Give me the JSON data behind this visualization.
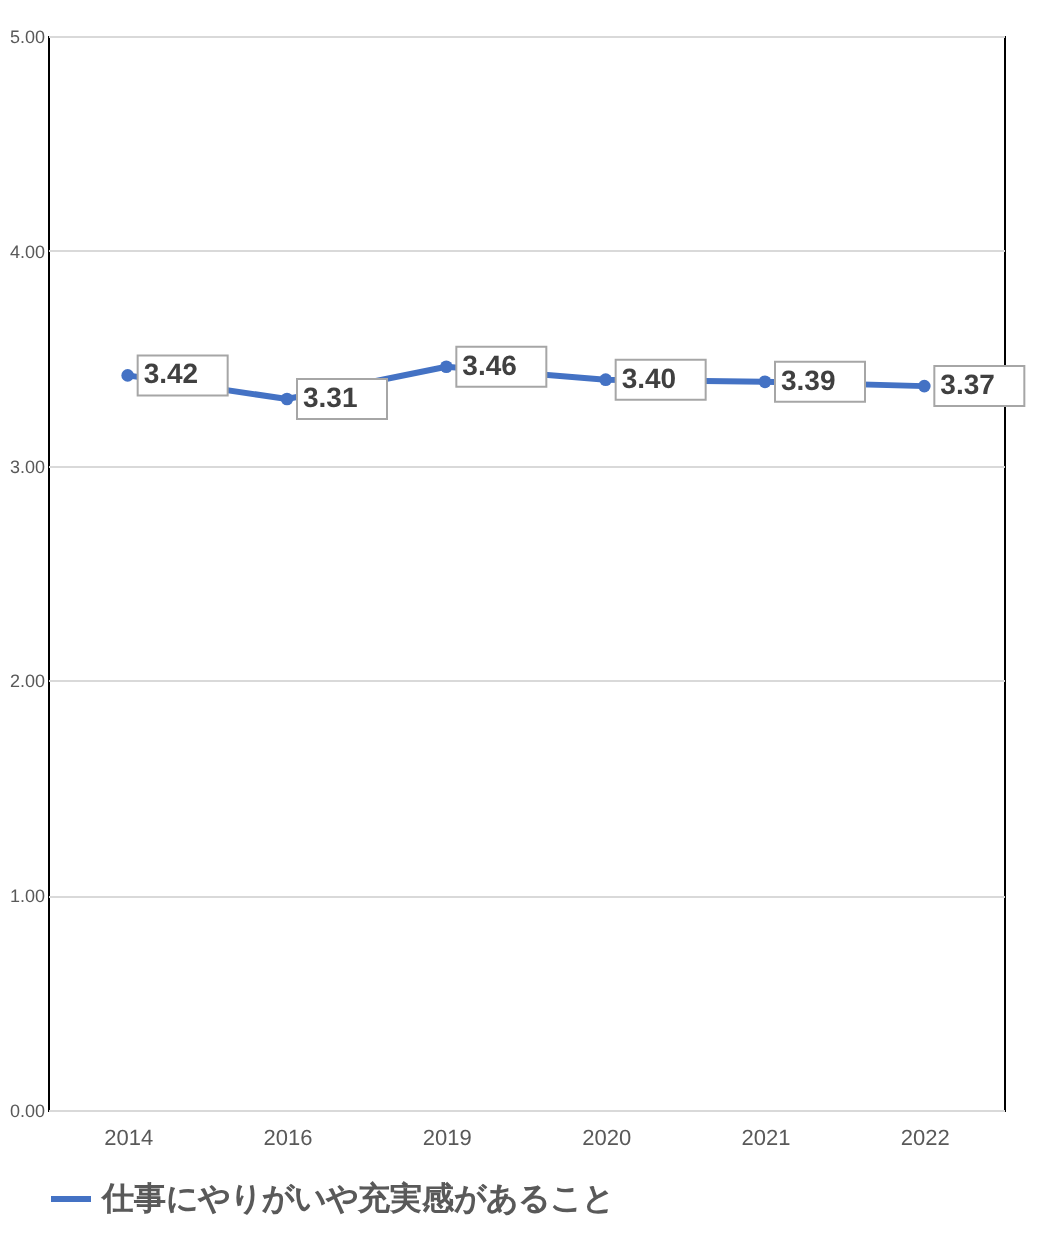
{
  "chart_data": {
    "type": "line",
    "categories": [
      "2014",
      "2016",
      "2019",
      "2020",
      "2021",
      "2022"
    ],
    "series": [
      {
        "name": "仕事にやりがいや充実感があること",
        "color": "#4472c4",
        "values": [
          3.42,
          3.31,
          3.46,
          3.4,
          3.39,
          3.37
        ],
        "value_labels": [
          "3.42",
          "3.31",
          "3.46",
          "3.40",
          "3.39",
          "3.37"
        ]
      }
    ],
    "ylim": [
      0,
      5
    ],
    "yticks": [
      {
        "value": 0,
        "label": "0.00"
      },
      {
        "value": 1,
        "label": "1.00"
      },
      {
        "value": 2,
        "label": "2.00"
      },
      {
        "value": 3,
        "label": "3.00"
      },
      {
        "value": 4,
        "label": "4.00"
      },
      {
        "value": 5,
        "label": "5.00"
      }
    ],
    "grid": "y",
    "legend": "bottom",
    "marker": "circle",
    "line_style": "solid"
  }
}
